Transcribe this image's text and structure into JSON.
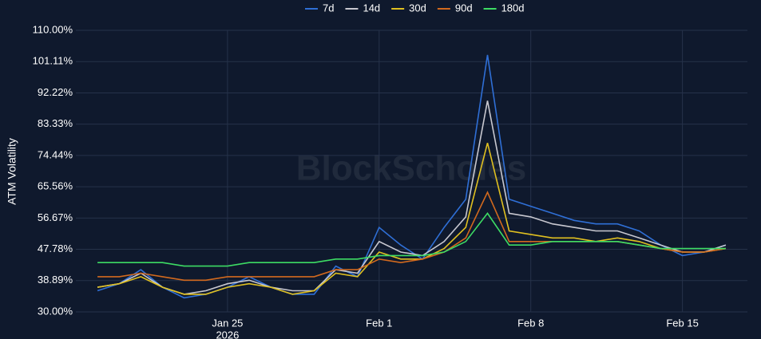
{
  "chart_data": {
    "type": "line",
    "y_label": "ATM Volatility",
    "watermark": "BlockScholes",
    "x": [
      "2026-01-19",
      "2026-01-20",
      "2026-01-21",
      "2026-01-22",
      "2026-01-23",
      "2026-01-24",
      "2026-01-25",
      "2026-01-26",
      "2026-01-27",
      "2026-01-28",
      "2026-01-29",
      "2026-01-30",
      "2026-01-31",
      "2026-02-01",
      "2026-02-02",
      "2026-02-03",
      "2026-02-04",
      "2026-02-05",
      "2026-02-06",
      "2026-02-07",
      "2026-02-08",
      "2026-02-09",
      "2026-02-10",
      "2026-02-11",
      "2026-02-12",
      "2026-02-13",
      "2026-02-14",
      "2026-02-15",
      "2026-02-16",
      "2026-02-17"
    ],
    "series": [
      {
        "name": "7d",
        "color": "#2f6fd6",
        "values": [
          36,
          38,
          42,
          37,
          34,
          35,
          37,
          40,
          37,
          35,
          35,
          43,
          40,
          54,
          49,
          45,
          54,
          62,
          103,
          62,
          60,
          58,
          56,
          55,
          55,
          53,
          49,
          46,
          47,
          49
        ]
      },
      {
        "name": "14d",
        "color": "#c8c8d0",
        "values": [
          37,
          38,
          41,
          37,
          35,
          36,
          38,
          39,
          37,
          36,
          36,
          42,
          41,
          50,
          47,
          46,
          50,
          57,
          90,
          58,
          57,
          55,
          54,
          53,
          53,
          51,
          49,
          47,
          47,
          49
        ]
      },
      {
        "name": "30d",
        "color": "#e0c020",
        "values": [
          37,
          38,
          40,
          37,
          35,
          35,
          37,
          38,
          37,
          35,
          36,
          41,
          40,
          47,
          45,
          45,
          48,
          54,
          78,
          53,
          52,
          51,
          51,
          50,
          51,
          50,
          48,
          47,
          47,
          48
        ]
      },
      {
        "name": "90d",
        "color": "#d2691e",
        "values": [
          40,
          40,
          41,
          40,
          39,
          39,
          40,
          40,
          40,
          40,
          40,
          42,
          42,
          45,
          44,
          45,
          47,
          51,
          64,
          50,
          50,
          50,
          50,
          50,
          50,
          49,
          48,
          47,
          47,
          48
        ]
      },
      {
        "name": "180d",
        "color": "#3ddc64",
        "values": [
          44,
          44,
          44,
          44,
          43,
          43,
          43,
          44,
          44,
          44,
          44,
          45,
          45,
          46,
          46,
          46,
          47,
          50,
          58,
          49,
          49,
          50,
          50,
          50,
          50,
          49,
          48,
          48,
          48,
          48
        ]
      }
    ],
    "xlim": [
      "2026-01-18",
      "2026-02-18"
    ],
    "xticks": [
      {
        "value": "2026-01-25",
        "label": "Jan 25",
        "sublabel": "2026"
      },
      {
        "value": "2026-02-01",
        "label": "Feb 1"
      },
      {
        "value": "2026-02-08",
        "label": "Feb 8"
      },
      {
        "value": "2026-02-15",
        "label": "Feb 15"
      }
    ],
    "ylim": [
      30,
      110
    ],
    "yticks": [
      {
        "value": 30,
        "label": "30.00%"
      },
      {
        "value": 38.89,
        "label": "38.89%"
      },
      {
        "value": 47.78,
        "label": "47.78%"
      },
      {
        "value": 56.67,
        "label": "56.67%"
      },
      {
        "value": 65.56,
        "label": "65.56%"
      },
      {
        "value": 74.44,
        "label": "74.44%"
      },
      {
        "value": 83.33,
        "label": "83.33%"
      },
      {
        "value": 92.22,
        "label": "92.22%"
      },
      {
        "value": 101.11,
        "label": "101.11%"
      },
      {
        "value": 110,
        "label": "110.00%"
      }
    ],
    "grid": true
  }
}
